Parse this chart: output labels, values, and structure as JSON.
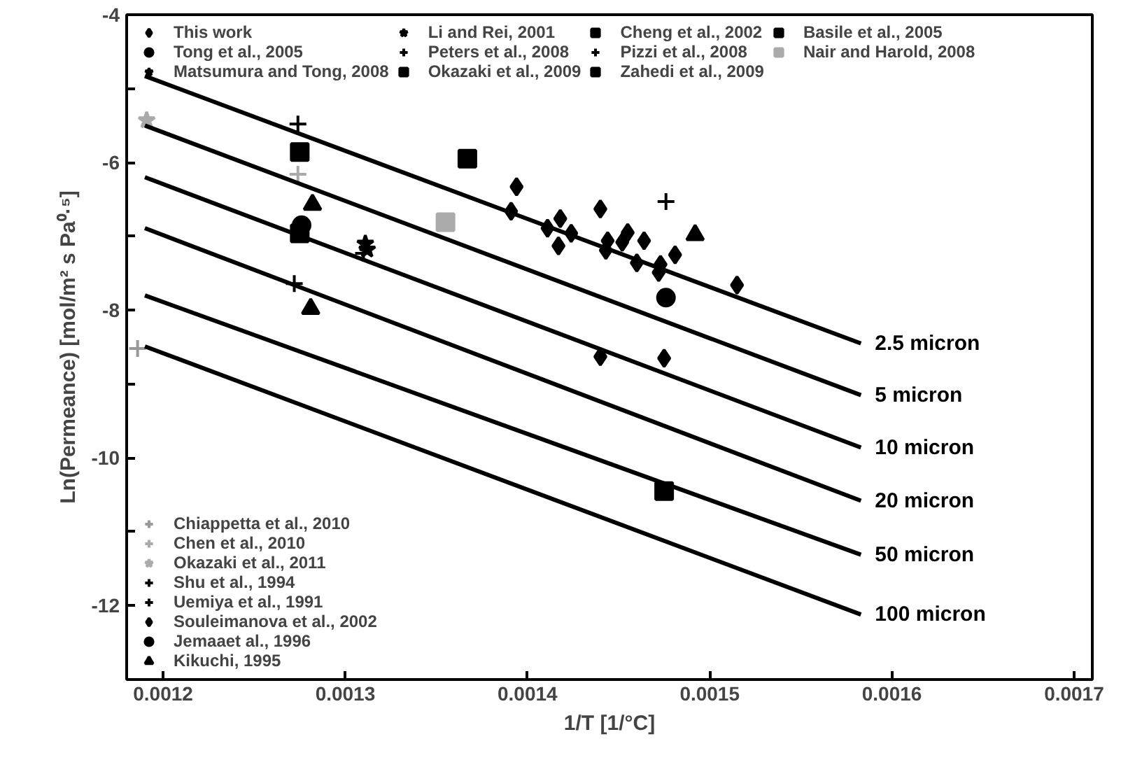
{
  "chart_data": {
    "type": "scatter",
    "xlabel": "1/T [1/°C]",
    "ylabel": "Ln(Permeance) [mol/m² s Pa⁰·⁵]",
    "xlim": [
      0.00118,
      0.00171
    ],
    "ylim": [
      -13,
      -4
    ],
    "xticks": [
      0.0012,
      0.0013,
      0.0014,
      0.0015,
      0.0016,
      0.0017
    ],
    "yticks": [
      -4,
      {
        "value": -5,
        "label": null
      },
      -6,
      {
        "value": -7,
        "label": null
      },
      -8,
      {
        "value": -9,
        "label": null
      },
      -10,
      {
        "value": -11,
        "label": null
      },
      -12
    ],
    "grid": false,
    "legend": "top",
    "series": [
      {
        "name": "This work",
        "marker": "diamond",
        "color": "#000000",
        "x": [
          0.001394,
          0.001391,
          0.001411,
          0.001418,
          0.001417,
          0.001424,
          0.00144,
          0.001444,
          0.001443,
          0.001452,
          0.001455,
          0.00146,
          0.001464,
          0.001472,
          0.001473,
          0.001481,
          0.001515
        ],
        "values": [
          -6.33,
          -6.66,
          -6.89,
          -6.76,
          -7.13,
          -6.96,
          -6.63,
          -7.06,
          -7.19,
          -7.08,
          -6.95,
          -7.36,
          -7.06,
          -7.49,
          -7.38,
          -7.25,
          -7.66
        ]
      },
      {
        "name": "Li and Rei, 2001",
        "marker": "star",
        "color": "#000000",
        "x": [
          0.001312
        ],
        "values": [
          -7.18
        ]
      },
      {
        "name": "Cheng et al., 2002",
        "marker": "square",
        "color": "#000000",
        "x": [
          0.001367
        ],
        "values": [
          -5.95
        ]
      },
      {
        "name": "Basile et al., 2005",
        "marker": "square",
        "color": "#000000",
        "x": [
          0.001475
        ],
        "values": [
          -10.45
        ]
      },
      {
        "name": "Tong et al., 2005",
        "marker": "circle",
        "color": "#000000",
        "x": [
          0.001276
        ],
        "values": [
          -6.85
        ]
      },
      {
        "name": "Peters et al., 2008",
        "marker": "cross",
        "color": "#000000",
        "x": [
          0.001476
        ],
        "values": [
          -6.53
        ]
      },
      {
        "name": "Pizzi et al., 2008",
        "marker": "cross",
        "color": "#000000",
        "x": [
          0.001274
        ],
        "values": [
          -5.48
        ]
      },
      {
        "name": "Nair and Harold, 2008",
        "marker": "square",
        "color": "#aaaaaa",
        "x": [
          0.001355
        ],
        "values": [
          -6.81
        ]
      },
      {
        "name": "Matsumura and Tong, 2008",
        "marker": "star",
        "color": "#000000",
        "x": [
          0.001311
        ],
        "values": [
          -7.1
        ]
      },
      {
        "name": "Okazaki et al., 2009",
        "marker": "square",
        "color": "#000000",
        "x": [
          0.001275
        ],
        "values": [
          -5.86
        ]
      },
      {
        "name": "Zahedi et al., 2009",
        "marker": "square",
        "color": "#000000",
        "x": [
          0.001275
        ],
        "values": [
          -6.96
        ]
      },
      {
        "name": "Chiappetta et al., 2010",
        "marker": "cross",
        "color": "#999999",
        "x": [
          0.001186
        ],
        "values": [
          -8.52
        ]
      },
      {
        "name": "Chen et al., 2010",
        "marker": "cross",
        "color": "#aaaaaa",
        "x": [
          0.001274
        ],
        "values": [
          -6.16
        ]
      },
      {
        "name": "Okazaki et al., 2011",
        "marker": "star",
        "color": "#aaaaaa",
        "x": [
          0.001191
        ],
        "values": [
          -5.43
        ]
      },
      {
        "name": "Shu et al., 1994",
        "marker": "cross",
        "color": "#000000",
        "x": [
          0.00131
        ],
        "values": [
          -7.23
        ]
      },
      {
        "name": "Uemiya et al., 1991",
        "marker": "cross",
        "color": "#000000",
        "x": [
          0.001272
        ],
        "values": [
          -7.64
        ]
      },
      {
        "name": "Souleimanova et al., 2002",
        "marker": "diamond",
        "color": "#000000",
        "x": [
          0.00144,
          0.001475
        ],
        "values": [
          -8.63,
          -8.65
        ]
      },
      {
        "name": "Jemaaet al., 1996",
        "marker": "circle",
        "color": "#000000",
        "x": [
          0.001476
        ],
        "values": [
          -7.83
        ]
      },
      {
        "name": "Kikuchi, 1995",
        "marker": "triangle",
        "color": "#000000",
        "x": [
          0.001282,
          0.001281,
          0.001492
        ],
        "values": [
          -6.57,
          -7.98,
          -6.98
        ]
      },
      {
        "name": "2.5 micron",
        "type": "line",
        "color": "#000000",
        "x": [
          0.00119,
          0.001583
        ],
        "values": [
          -4.83,
          -8.45
        ]
      },
      {
        "name": "5 micron",
        "type": "line",
        "color": "#000000",
        "x": [
          0.00119,
          0.001583
        ],
        "values": [
          -5.5,
          -9.15
        ]
      },
      {
        "name": "10 micron",
        "type": "line",
        "color": "#000000",
        "x": [
          0.00119,
          0.001583
        ],
        "values": [
          -6.2,
          -9.86
        ]
      },
      {
        "name": "20 micron",
        "type": "line",
        "color": "#000000",
        "x": [
          0.00119,
          0.001583
        ],
        "values": [
          -6.89,
          -10.58
        ]
      },
      {
        "name": "50 micron",
        "type": "line",
        "color": "#000000",
        "x": [
          0.00119,
          0.001583
        ],
        "values": [
          -7.8,
          -11.31
        ]
      },
      {
        "name": "100 micron",
        "type": "line",
        "color": "#000000",
        "x": [
          0.00119,
          0.001583
        ],
        "values": [
          -8.49,
          -12.12
        ]
      }
    ]
  }
}
